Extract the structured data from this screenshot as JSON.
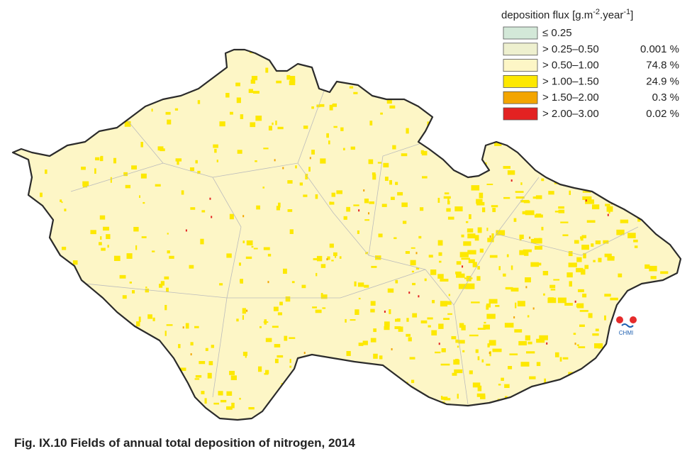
{
  "legend": {
    "title_parts": [
      "deposition flux [g.m",
      "-2",
      ".year",
      "-1",
      "]"
    ],
    "items": [
      {
        "label": "≤ 0.25",
        "color": "#d3e8d8"
      },
      {
        "label": "> 0.25–0.50",
        "share": "0.001 %",
        "color": "#eef0cf"
      },
      {
        "label": "> 0.50–1.00",
        "share": "74.8 %",
        "color": "#fdf6c6"
      },
      {
        "label": "> 1.00–1.50",
        "share": "24.9 %",
        "color": "#fde800"
      },
      {
        "label": "> 1.50–2.00",
        "share": "0.3 %",
        "color": "#f3a500"
      },
      {
        "label": "> 2.00–3.00",
        "share": "0.02 %",
        "color": "#e32222"
      }
    ]
  },
  "logo": {
    "text": "CHMI"
  },
  "caption": "Fig. IX.10  Fields of annual total deposition of nitrogen, 2014"
}
